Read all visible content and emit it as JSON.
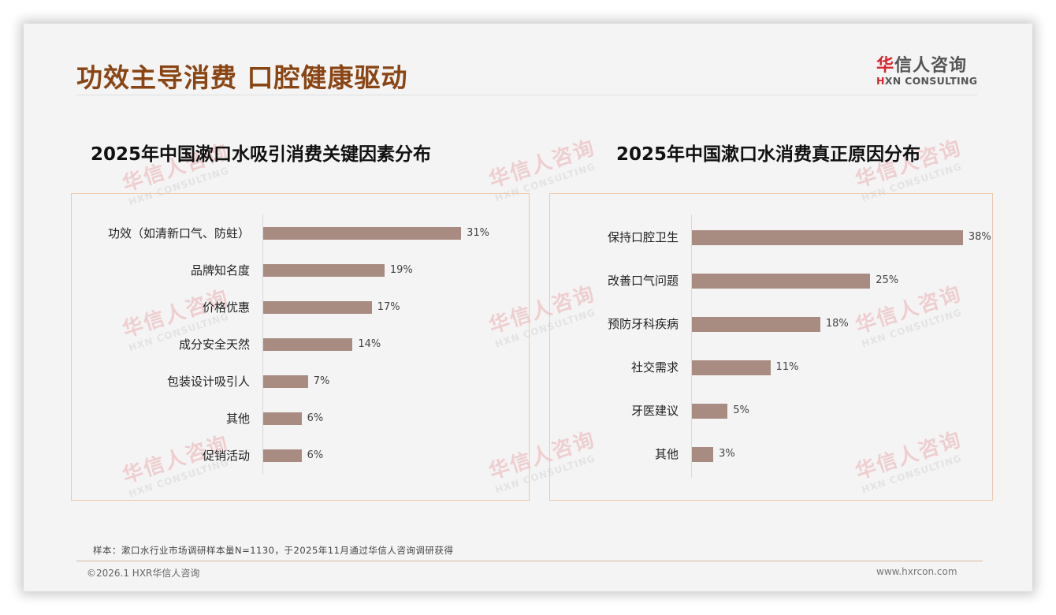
{
  "header": {
    "title": "功效主导消费 口腔健康驱动",
    "logo_cn_first": "华",
    "logo_cn_rest": "信人咨询",
    "logo_en_first": "H",
    "logo_en_rest": "XN CONSULTING"
  },
  "watermark": {
    "cn": "华信人咨询",
    "en": "HXN CONSULTING"
  },
  "colors": {
    "title": "#8a4514",
    "bar": "#a88c82",
    "box_border": "#f0c7a8",
    "logo_red": "#d7282f"
  },
  "footer": {
    "note": "样本：漱口水行业市场调研样本量N=1130，于2025年11月通过华信人咨询调研获得",
    "copyright": "©2026.1 HXR华信人咨询",
    "url": "www.hxrcon.com"
  },
  "chart_data": [
    {
      "type": "bar",
      "orientation": "horizontal",
      "title": "2025年中国漱口水吸引消费关键因素分布",
      "categories": [
        "功效（如清新口气、防蛀）",
        "品牌知名度",
        "价格优惠",
        "成分安全天然",
        "包装设计吸引人",
        "其他",
        "促销活动"
      ],
      "values": [
        31,
        19,
        17,
        14,
        7,
        6,
        6
      ],
      "labels": [
        "31%",
        "19%",
        "17%",
        "14%",
        "7%",
        "6%",
        "6%"
      ],
      "unit": "%",
      "xlabel": "",
      "ylabel": "",
      "grid": false,
      "legend": null
    },
    {
      "type": "bar",
      "orientation": "horizontal",
      "title": "2025年中国漱口水消费真正原因分布",
      "categories": [
        "保持口腔卫生",
        "改善口气问题",
        "预防牙科疾病",
        "社交需求",
        "牙医建议",
        "其他"
      ],
      "values": [
        38,
        25,
        18,
        11,
        5,
        3
      ],
      "labels": [
        "38%",
        "25%",
        "18%",
        "11%",
        "5%",
        "3%"
      ],
      "unit": "%",
      "xlabel": "",
      "ylabel": "",
      "grid": false,
      "legend": null
    }
  ]
}
